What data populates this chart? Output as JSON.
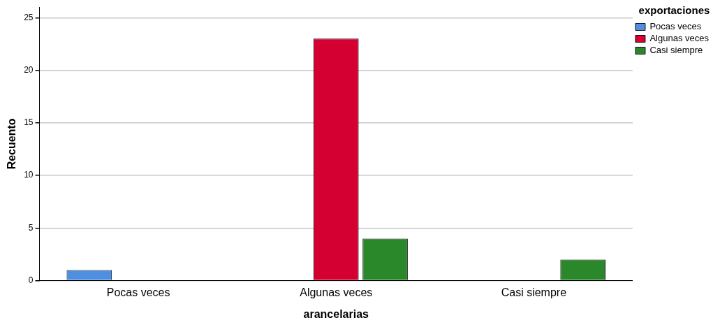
{
  "chart_data": {
    "type": "bar",
    "xlabel": "arancelarias",
    "ylabel": "Recuento",
    "legend_title": "exportaciones",
    "categories": [
      "Pocas veces",
      "Algunas veces",
      "Casi siempre"
    ],
    "series": [
      {
        "name": "Pocas veces",
        "color": "#4f8fe0",
        "values": [
          1,
          null,
          null
        ]
      },
      {
        "name": "Algunas veces",
        "color": "#d50032",
        "values": [
          null,
          23,
          null
        ]
      },
      {
        "name": "Casi siempre",
        "color": "#2a882a",
        "values": [
          null,
          4,
          2
        ]
      }
    ],
    "ylim": [
      0,
      26
    ],
    "yticks": [
      0,
      5,
      10,
      15,
      20,
      25
    ],
    "grid": "y",
    "legend": "top right"
  }
}
